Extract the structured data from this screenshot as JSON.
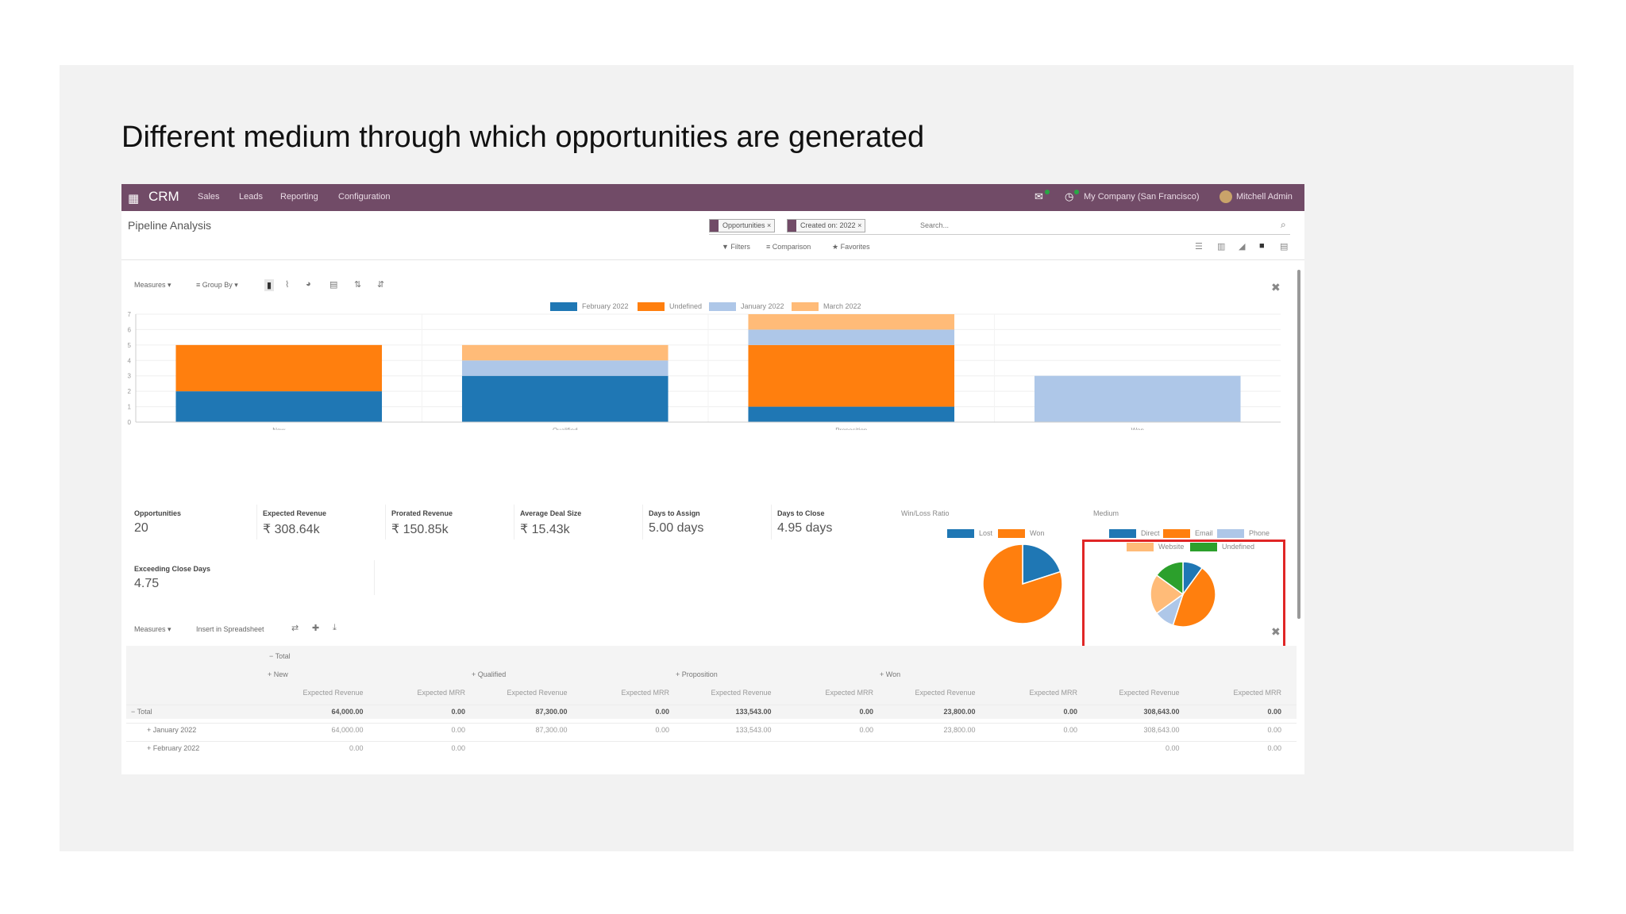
{
  "slide": {
    "title": "Different medium through which opportunities are generated"
  },
  "navbar": {
    "app_name": "CRM",
    "menu": [
      "Sales",
      "Leads",
      "Reporting",
      "Configuration"
    ],
    "company": "My Company (San Francisco)",
    "user": "Mitchell Admin",
    "icons": [
      "apps-grid-icon",
      "chat-icon",
      "activity-clock-icon"
    ]
  },
  "control_panel": {
    "title": "Pipeline Analysis",
    "facets": [
      "Opportunities",
      "Created on: 2022"
    ],
    "search_placeholder": "Search...",
    "filter_options": [
      "▼ Filters",
      "≡ Comparison",
      "★ Favorites"
    ],
    "view_icons": [
      "list-view-icon",
      "kanban-view-icon",
      "graph-view-icon",
      "dashboard-view-icon",
      "pivot-view-icon"
    ]
  },
  "graph_toolbar": {
    "measures": "Measures ▾",
    "group_by": "≡ Group By ▾"
  },
  "bar_chart": {
    "type": "bar",
    "stacked": true,
    "categories": [
      "New",
      "Qualified",
      "Proposition",
      "Won"
    ],
    "y_ticks": [
      "0",
      "1",
      "2",
      "3",
      "4",
      "5",
      "6",
      "7"
    ],
    "ylim": [
      0,
      7
    ],
    "legend": "top-center",
    "series": [
      {
        "name": "February 2022",
        "color": "#1f77b4",
        "values": [
          2,
          3,
          1,
          0
        ]
      },
      {
        "name": "Undefined",
        "color": "#ff7f0e",
        "values": [
          3,
          0,
          4,
          0
        ]
      },
      {
        "name": "January 2022",
        "color": "#aec7e8",
        "values": [
          0,
          1,
          1,
          3
        ]
      },
      {
        "name": "March 2022",
        "color": "#ffbb78",
        "values": [
          0,
          1,
          1,
          0
        ]
      }
    ]
  },
  "kpis": [
    {
      "label": "Opportunities",
      "value": "20"
    },
    {
      "label": "Expected Revenue",
      "value": "₹ 308.64k"
    },
    {
      "label": "Prorated Revenue",
      "value": "₹ 150.85k"
    },
    {
      "label": "Average Deal Size",
      "value": "₹ 15.43k"
    },
    {
      "label": "Days to Assign",
      "value": "5.00 days"
    },
    {
      "label": "Days to Close",
      "value": "4.95 days"
    },
    {
      "label": "Exceeding Close Days",
      "value": "4.75"
    }
  ],
  "win_loss_chart": {
    "type": "pie",
    "title": "Win/Loss Ratio",
    "labels": [
      "Lost",
      "Won"
    ],
    "values": [
      4,
      16
    ],
    "colors": [
      "#1f77b4",
      "#ff7f0e"
    ]
  },
  "medium_chart": {
    "type": "pie",
    "title": "Medium",
    "labels": [
      "Direct",
      "Email",
      "Phone",
      "Website",
      "Undefined"
    ],
    "values": [
      2,
      9,
      2,
      4,
      3
    ],
    "colors": [
      "#1f77b4",
      "#ff7f0e",
      "#aec7e8",
      "#ffbb78",
      "#2ca02c"
    ]
  },
  "pivot_toolbar": {
    "measures": "Measures ▾",
    "insert": "Insert in Spreadsheet"
  },
  "pivot": {
    "total_header": "− Total",
    "groups": [
      "+ New",
      "+ Qualified",
      "+ Proposition",
      "+ Won"
    ],
    "measures": [
      "Expected Revenue",
      "Expected MRR"
    ],
    "rows": [
      {
        "label": "− Total",
        "values": [
          "64,000.00",
          "0.00",
          "87,300.00",
          "0.00",
          "133,543.00",
          "0.00",
          "23,800.00",
          "0.00",
          "308,643.00",
          "0.00"
        ]
      },
      {
        "label": "+ January 2022",
        "values": [
          "64,000.00",
          "0.00",
          "87,300.00",
          "0.00",
          "133,543.00",
          "0.00",
          "23,800.00",
          "0.00",
          "308,643.00",
          "0.00"
        ]
      },
      {
        "label": "+ February 2022",
        "values": [
          "0.00",
          "0.00",
          "",
          "",
          "",
          "",
          "",
          "",
          "0.00",
          "0.00"
        ]
      }
    ]
  }
}
